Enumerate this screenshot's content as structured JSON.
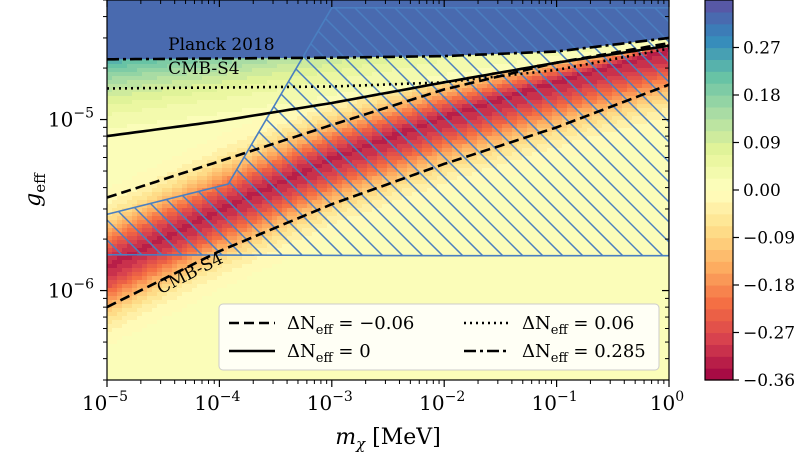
{
  "chart_data": {
    "type": "heatmap",
    "xlabel_symbol": "m",
    "xlabel_sub": "χ",
    "xlabel_unit": "[MeV]",
    "ylabel_symbol": "g",
    "ylabel_sub": "eff",
    "x_scale": "log",
    "y_scale": "log",
    "xlim": [
      1e-05,
      1
    ],
    "ylim": [
      3e-07,
      5e-05
    ],
    "x_ticks": [
      {
        "value": 1e-05,
        "base": "10",
        "exp": "−5"
      },
      {
        "value": 0.0001,
        "base": "10",
        "exp": "−4"
      },
      {
        "value": 0.001,
        "base": "10",
        "exp": "−3"
      },
      {
        "value": 0.01,
        "base": "10",
        "exp": "−2"
      },
      {
        "value": 0.1,
        "base": "10",
        "exp": "−1"
      },
      {
        "value": 1,
        "base": "10",
        "exp": "0"
      }
    ],
    "y_ticks": [
      {
        "value": 1e-06,
        "base": "10",
        "exp": "−6"
      },
      {
        "value": 1e-05,
        "base": "10",
        "exp": "−5"
      }
    ],
    "colorbar": {
      "min": -0.36,
      "max": 0.36,
      "tick_labels": [
        "0.27",
        "0.18",
        "0.09",
        "0.00",
        "−0.09",
        "−0.18",
        "−0.27",
        "−0.36"
      ],
      "tick_values": [
        0.27,
        0.18,
        0.09,
        0.0,
        -0.09,
        -0.18,
        -0.27,
        -0.36
      ],
      "colormap": "Spectral",
      "levels": 32
    },
    "contours": [
      {
        "level": -0.06,
        "style": "dashed",
        "lower_branch": [
          [
            1e-05,
            8e-07
          ],
          [
            0.0001,
            1.7e-06
          ],
          [
            0.001,
            3.2e-06
          ],
          [
            0.01,
            5.5e-06
          ],
          [
            0.1,
            9e-06
          ],
          [
            1,
            1.6e-05
          ]
        ],
        "upper_branch": [
          [
            1e-05,
            3.5e-06
          ],
          [
            0.0001,
            5.7e-06
          ],
          [
            0.001,
            9.3e-06
          ],
          [
            0.01,
            1.5e-05
          ],
          [
            0.1,
            2.15e-05
          ],
          [
            1,
            2.8e-05
          ]
        ]
      },
      {
        "level": 0,
        "style": "solid",
        "points": [
          [
            1e-05,
            8e-06
          ],
          [
            0.0001,
            9.8e-06
          ],
          [
            0.001,
            1.25e-05
          ],
          [
            0.01,
            1.65e-05
          ],
          [
            0.1,
            2.15e-05
          ],
          [
            1,
            2.7e-05
          ]
        ]
      },
      {
        "level": 0.06,
        "style": "dotted",
        "points": [
          [
            1e-05,
            1.52e-05
          ],
          [
            0.001,
            1.56e-05
          ],
          [
            0.01,
            1.65e-05
          ],
          [
            0.1,
            1.95e-05
          ],
          [
            1,
            2.6e-05
          ]
        ]
      },
      {
        "level": 0.285,
        "style": "dashdot",
        "points": [
          [
            1e-05,
            2.25e-05
          ],
          [
            0.001,
            2.3e-05
          ],
          [
            0.01,
            2.35e-05
          ],
          [
            0.1,
            2.5e-05
          ],
          [
            1,
            3e-05
          ]
        ]
      }
    ],
    "ridge": [
      [
        1e-05,
        1.4e-06
      ],
      [
        0.0001,
        3e-06
      ],
      [
        0.001,
        6e-06
      ],
      [
        0.01,
        1.05e-05
      ],
      [
        0.1,
        1.7e-05
      ],
      [
        1,
        2.6e-05
      ]
    ],
    "hatched_region": [
      [
        3.2e-06,
        2.05e-06
      ],
      [
        4e-06,
        2.4e-06
      ],
      [
        0.00012,
        4.2e-06
      ],
      [
        0.001,
        4.5e-05
      ],
      [
        1,
        4.5e-05
      ],
      [
        1,
        1.6e-06
      ],
      [
        0.01,
        1.6e-06
      ],
      [
        1e-05,
        1.62e-06
      ],
      [
        4.2e-06,
        1.8e-06
      ]
    ],
    "planck_band_top_value": 0.33,
    "annotations": [
      {
        "text": "Planck 2018",
        "x": 3.5e-05,
        "y": 2.55e-05
      },
      {
        "text": "CMB-S4",
        "x": 3.5e-05,
        "y": 1.85e-05
      },
      {
        "text": "CMB-S4",
        "x": 3e-05,
        "y": 9.5e-07,
        "rotation": -27
      }
    ],
    "legend": {
      "position": "lower-right",
      "entries": [
        {
          "symbol": "ΔN",
          "sub": "eff",
          "rest": " = −0.06",
          "style": "dashed"
        },
        {
          "symbol": "ΔN",
          "sub": "eff",
          "rest": " = 0.06",
          "style": "dotted"
        },
        {
          "symbol": "ΔN",
          "sub": "eff",
          "rest": " = 0",
          "style": "solid"
        },
        {
          "symbol": "ΔN",
          "sub": "eff",
          "rest": " = 0.285",
          "style": "dashdot"
        }
      ]
    },
    "hatch_color": "#4a7fc1"
  }
}
